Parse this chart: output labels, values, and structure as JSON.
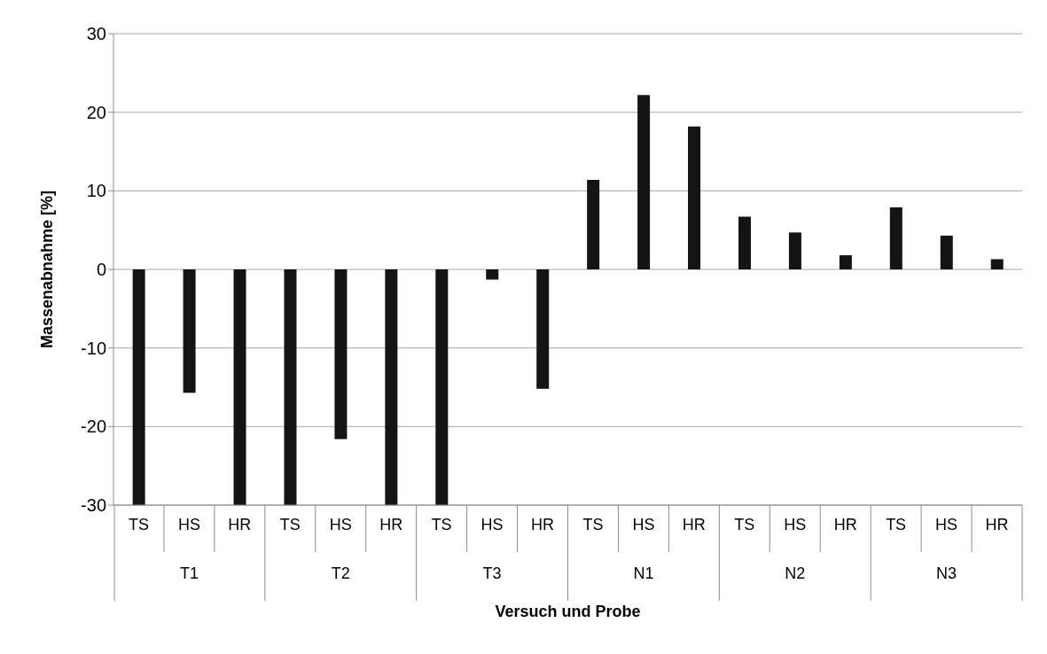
{
  "chart_data": {
    "type": "bar",
    "xlabel": "Versuch und Probe",
    "ylabel": "Massenabnahme [%]",
    "categories": [
      "TS",
      "HS",
      "HR",
      "TS",
      "HS",
      "HR",
      "TS",
      "HS",
      "HR",
      "TS",
      "HS",
      "HR",
      "TS",
      "HS",
      "HR",
      "TS",
      "HS",
      "HR"
    ],
    "annotations": [
      "T1",
      "T2",
      "T3",
      "N1",
      "N2",
      "N3"
    ],
    "values": [
      -30,
      -15.7,
      -30,
      -30,
      -21.6,
      -30,
      -30,
      -1.3,
      -15.2,
      11.4,
      22.2,
      18.2,
      6.7,
      4.7,
      1.8,
      7.9,
      4.3,
      1.3
    ],
    "color": "#141414",
    "ylim": [
      -30,
      30
    ],
    "yticks": [
      -30,
      -20,
      -10,
      0,
      10,
      20,
      30
    ],
    "grid": "y",
    "legend": false
  }
}
